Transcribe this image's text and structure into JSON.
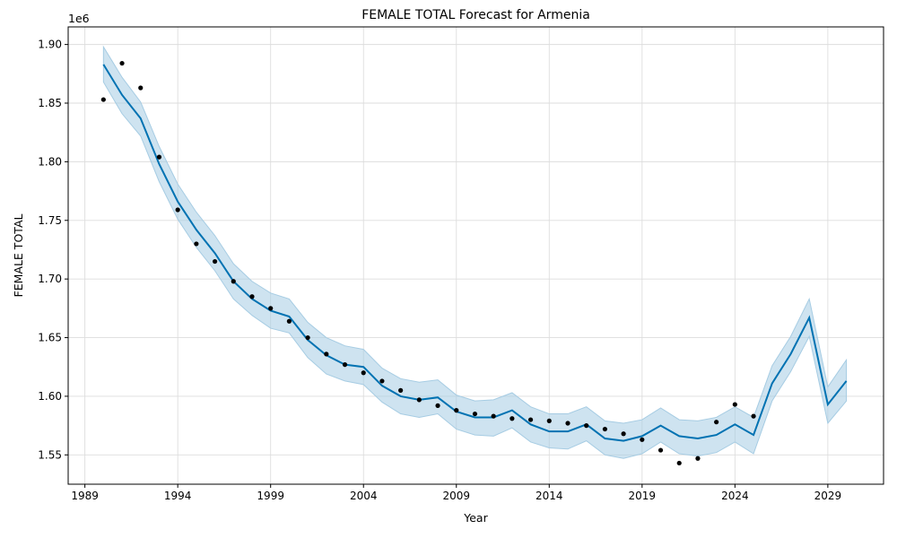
{
  "chart_data": {
    "type": "line",
    "title": "FEMALE TOTAL Forecast for Armenia",
    "xlabel": "Year",
    "ylabel": "FEMALE TOTAL",
    "y_offset_label": "1e6",
    "xlim": [
      1988.1,
      2032.0
    ],
    "ylim": [
      1.525,
      1.915
    ],
    "grid": true,
    "x_ticks": [
      1989,
      1994,
      1999,
      2004,
      2009,
      2014,
      2019,
      2024,
      2029
    ],
    "y_ticks": [
      1.55,
      1.6,
      1.65,
      1.7,
      1.75,
      1.8,
      1.85,
      1.9
    ],
    "y_tick_labels": [
      "1.55",
      "1.60",
      "1.65",
      "1.70",
      "1.75",
      "1.80",
      "1.85",
      "1.90"
    ],
    "colors": {
      "forecast": "#0072b2",
      "interval": "#a6cce3",
      "actual": "#000000",
      "grid": "#dddddd"
    },
    "series": [
      {
        "role": "forecast",
        "x": [
          1990,
          1991,
          1992,
          1993,
          1994,
          1995,
          1996,
          1997,
          1998,
          1999,
          2000,
          2001,
          2002,
          2003,
          2004,
          2005,
          2006,
          2007,
          2008,
          2009,
          2010,
          2011,
          2012,
          2013,
          2014,
          2015,
          2016,
          2017,
          2018,
          2019,
          2020,
          2021,
          2022,
          2023,
          2024,
          2025,
          2026,
          2027,
          2028,
          2029,
          2030
        ],
        "values": [
          1.883,
          1.857,
          1.837,
          1.798,
          1.766,
          1.742,
          1.722,
          1.698,
          1.683,
          1.673,
          1.668,
          1.648,
          1.635,
          1.627,
          1.625,
          1.609,
          1.6,
          1.597,
          1.599,
          1.587,
          1.582,
          1.582,
          1.588,
          1.576,
          1.57,
          1.57,
          1.576,
          1.564,
          1.562,
          1.566,
          1.575,
          1.566,
          1.564,
          1.567,
          1.576,
          1.567,
          1.611,
          1.636,
          1.667,
          1.593,
          1.613
        ]
      },
      {
        "role": "interval",
        "x": [
          1990,
          1991,
          1992,
          1993,
          1994,
          1995,
          1996,
          1997,
          1998,
          1999,
          2000,
          2001,
          2002,
          2003,
          2004,
          2005,
          2006,
          2007,
          2008,
          2009,
          2010,
          2011,
          2012,
          2013,
          2014,
          2015,
          2016,
          2017,
          2018,
          2019,
          2020,
          2021,
          2022,
          2023,
          2024,
          2025,
          2026,
          2027,
          2028,
          2029,
          2030
        ],
        "upper": [
          1.898,
          1.872,
          1.851,
          1.813,
          1.781,
          1.757,
          1.737,
          1.713,
          1.698,
          1.688,
          1.683,
          1.663,
          1.65,
          1.643,
          1.64,
          1.624,
          1.615,
          1.612,
          1.614,
          1.601,
          1.596,
          1.597,
          1.603,
          1.591,
          1.585,
          1.585,
          1.591,
          1.579,
          1.577,
          1.58,
          1.59,
          1.58,
          1.579,
          1.582,
          1.591,
          1.582,
          1.626,
          1.651,
          1.683,
          1.608,
          1.631
        ],
        "lower": [
          1.868,
          1.841,
          1.822,
          1.783,
          1.751,
          1.727,
          1.707,
          1.683,
          1.669,
          1.658,
          1.654,
          1.633,
          1.619,
          1.613,
          1.61,
          1.595,
          1.585,
          1.582,
          1.585,
          1.572,
          1.567,
          1.566,
          1.573,
          1.561,
          1.556,
          1.555,
          1.562,
          1.55,
          1.547,
          1.551,
          1.561,
          1.551,
          1.549,
          1.552,
          1.561,
          1.551,
          1.596,
          1.621,
          1.651,
          1.577,
          1.596
        ]
      },
      {
        "role": "actual",
        "x": [
          1990,
          1991,
          1992,
          1993,
          1994,
          1995,
          1996,
          1997,
          1998,
          1999,
          2000,
          2001,
          2002,
          2003,
          2004,
          2005,
          2006,
          2007,
          2008,
          2009,
          2010,
          2011,
          2012,
          2013,
          2014,
          2015,
          2016,
          2017,
          2018,
          2019,
          2020,
          2021,
          2022,
          2023,
          2024,
          2025
        ],
        "values": [
          1.853,
          1.884,
          1.863,
          1.804,
          1.759,
          1.73,
          1.715,
          1.698,
          1.685,
          1.675,
          1.664,
          1.65,
          1.636,
          1.627,
          1.62,
          1.613,
          1.605,
          1.597,
          1.592,
          1.588,
          1.585,
          1.583,
          1.581,
          1.58,
          1.579,
          1.577,
          1.575,
          1.572,
          1.568,
          1.563,
          1.554,
          1.543,
          1.547,
          1.578,
          1.593,
          1.583
        ]
      }
    ]
  }
}
